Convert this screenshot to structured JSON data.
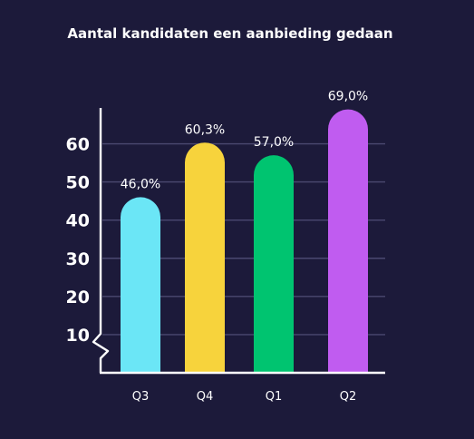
{
  "chart_data": {
    "type": "bar",
    "title": "Aantal kandidaten een aanbieding gedaan",
    "categories": [
      "Q3",
      "Q4",
      "Q1",
      "Q2"
    ],
    "values": [
      46.0,
      60.3,
      57.0,
      69.0
    ],
    "value_labels": [
      "46,0%",
      "60,3%",
      "57,0%",
      "69,0%"
    ],
    "colors": [
      "#6be6f6",
      "#f7d33c",
      "#00c470",
      "#c05cf0"
    ],
    "yticks": [
      10,
      20,
      30,
      40,
      50,
      60
    ],
    "ytick_labels": [
      "10",
      "20",
      "30",
      "40",
      "50",
      "60"
    ],
    "ylim": [
      0,
      70
    ],
    "axis_break": true,
    "grid": true,
    "xlabel": "",
    "ylabel": ""
  }
}
